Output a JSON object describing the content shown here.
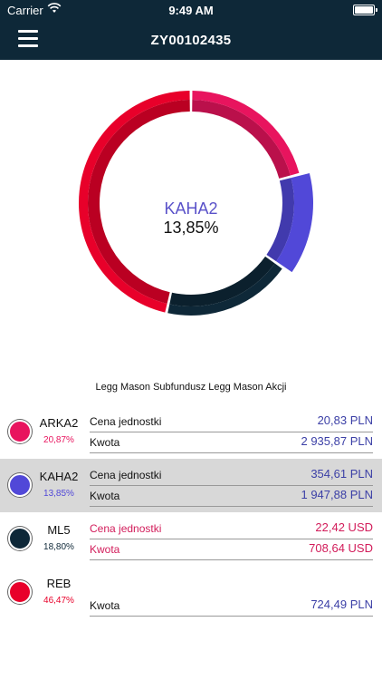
{
  "status_bar": {
    "carrier": "Carrier",
    "time": "9:49 AM"
  },
  "nav": {
    "title": "ZY00102435"
  },
  "colors": {
    "ARKA2": "#e8145e",
    "KAHA2": "#5148d8",
    "ML5": "#0e2838",
    "REB": "#e8002a",
    "blue_text": "#3b3fa6",
    "pink_text": "#d21c5a"
  },
  "chart_data": {
    "type": "pie",
    "title": "",
    "categories": [
      "ARKA2",
      "KAHA2",
      "ML5",
      "REB"
    ],
    "values": [
      20.87,
      13.85,
      18.8,
      46.47
    ],
    "selected": "KAHA2"
  },
  "center": {
    "name": "KAHA2",
    "percent": "13,85%"
  },
  "fund_name": "Legg Mason Subfundusz Legg Mason Akcji",
  "funds": [
    {
      "code": "ARKA2",
      "percent": "20,87%",
      "unit_label": "Cena jednostki",
      "unit_value": "20,83 PLN",
      "amount_label": "Kwota",
      "amount_value": "2 935,87 PLN"
    },
    {
      "code": "KAHA2",
      "percent": "13,85%",
      "unit_label": "Cena jednostki",
      "unit_value": "354,61 PLN",
      "amount_label": "Kwota",
      "amount_value": "1 947,88 PLN"
    },
    {
      "code": "ML5",
      "percent": "18,80%",
      "unit_label": "Cena jednostki",
      "unit_value": "22,42 USD",
      "amount_label": "Kwota",
      "amount_value": "708,64 USD"
    },
    {
      "code": "REB",
      "percent": "46,47%",
      "amount_label": "Kwota",
      "amount_value": "724,49 PLN"
    }
  ]
}
